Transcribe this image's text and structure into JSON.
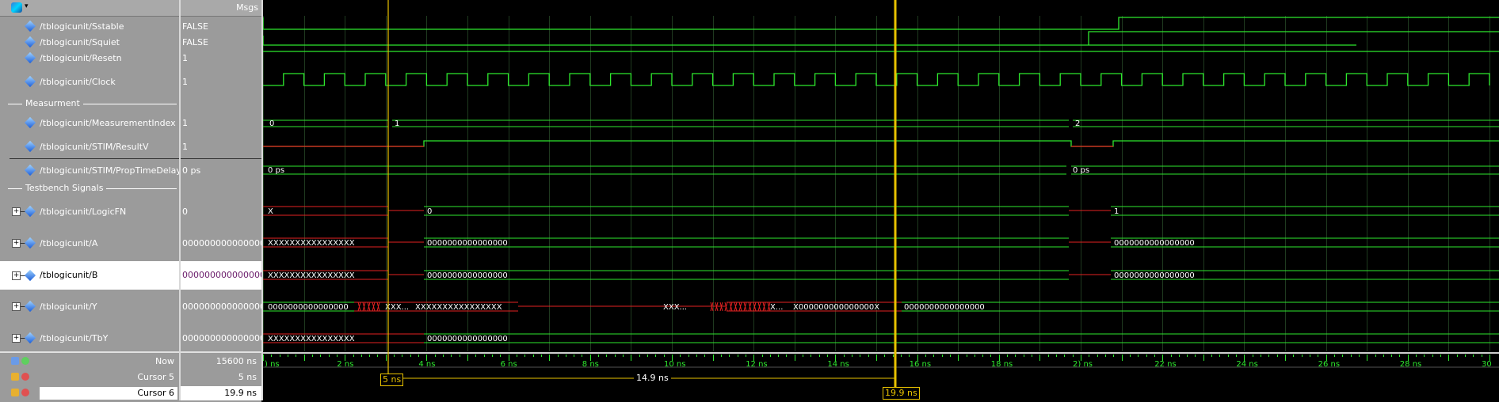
{
  "header": {
    "msgs_label": "Msgs"
  },
  "signals": [
    {
      "name": "/tblogicunit/Sstable",
      "value": "FALSE"
    },
    {
      "name": "/tblogicunit/Squiet",
      "value": "FALSE"
    },
    {
      "name": "/tblogicunit/Resetn",
      "value": "1"
    },
    {
      "name": "/tblogicunit/Clock",
      "value": "1"
    },
    {
      "name": "/tblogicunit/MeasurementIndex",
      "value": "1"
    },
    {
      "name": "/tblogicunit/STIM/ResultV",
      "value": "1"
    },
    {
      "name": "/tblogicunit/STIM/PropTimeDelay",
      "value": "0 ps"
    },
    {
      "name": "/tblogicunit/LogicFN",
      "value": "0"
    },
    {
      "name": "/tblogicunit/A",
      "value": "0000000000000000"
    },
    {
      "name": "/tblogicunit/B",
      "value": "0000000000000000"
    },
    {
      "name": "/tblogicunit/Y",
      "value": "0000000000000000"
    },
    {
      "name": "/tblogicunit/TbY",
      "value": "0000000000000000"
    }
  ],
  "dividers": {
    "measurement": "Measurment",
    "testbench": "Testbench Signals"
  },
  "bottom": {
    "now_label": "Now",
    "now_value": "15600 ns",
    "cursor5_label": "Cursor 5",
    "cursor5_value": "5 ns",
    "cursor6_label": "Cursor 6",
    "cursor6_value": "19.9 ns"
  },
  "wave_labels": {
    "mi": [
      "0",
      "1",
      "2"
    ],
    "ptd": [
      "0 ps",
      "0 ps"
    ],
    "logicfn": [
      "X",
      "0",
      "1"
    ],
    "a": [
      "XXXXXXXXXXXXXXXX",
      "0000000000000000",
      "0000000000000000"
    ],
    "b": [
      "XXXXXXXXXXXXXXXX",
      "0000000000000000",
      "0000000000000000"
    ],
    "y": [
      "0000000000000000",
      "XXX...",
      "XXXXXXXXXXXXXXXX",
      "XXX...",
      "X...",
      "X000000000000000X",
      "0000000000000000"
    ],
    "tby": [
      "XXXXXXXXXXXXXXXX",
      "0000000000000000"
    ]
  },
  "timeline": {
    "ticks": [
      ") ns",
      "2 ns",
      "4 ns",
      "6 ns",
      "8 ns",
      "10 ns",
      "12 ns",
      "14 ns",
      "16 ns",
      "18 ns",
      "2) ns",
      "22 ns",
      "24 ns",
      "26 ns",
      "28 ns",
      "30"
    ],
    "cursor5_box": "5 ns",
    "cursor6_box": "19.9 ns",
    "delta_label": "14.9 ns"
  },
  "colors": {
    "green": "#2ee82e",
    "red": "#e52222",
    "cursor": "#e8c200",
    "panel": "#9b9b9b"
  }
}
